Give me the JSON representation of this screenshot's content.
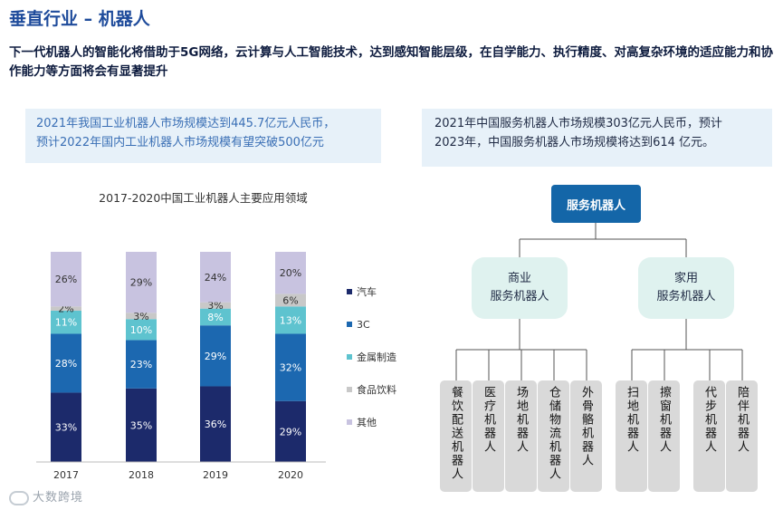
{
  "header": {
    "title": "垂直行业 – 机器人",
    "subtitle": "下一代机器人的智能化将借助于5G网络，云计算与人工智能技术，达到感知智能层级，在自学能力、执行精度、对高复杂环境的适应能力和协作能力等方面将会有显著提升"
  },
  "left_box": {
    "line1": "2021年我国工业机器人市场规模达到445.7亿元人民币，",
    "line2": "预计2022年国内工业机器人市场规模有望突破500亿元"
  },
  "right_box": {
    "line1": "2021年中国服务机器人市场规模303亿元人民币，预计",
    "line2": "2023年，中国服务机器人市场规模将达到614 亿元。"
  },
  "chart_data": {
    "type": "bar",
    "stacked": true,
    "title": "2017-2020中国工业机器人主要应用领域",
    "categories": [
      "2017",
      "2018",
      "2019",
      "2020"
    ],
    "series": [
      {
        "name": "汽车",
        "values": [
          33,
          35,
          36,
          29
        ],
        "color": "#1c2a6b"
      },
      {
        "name": "3C",
        "values": [
          28,
          23,
          29,
          32
        ],
        "color": "#1c68b0"
      },
      {
        "name": "金属制造",
        "values": [
          11,
          10,
          8,
          13
        ],
        "color": "#5ec3cf"
      },
      {
        "name": "食品饮料",
        "values": [
          2,
          3,
          3,
          6
        ],
        "color": "#c8c8c8"
      },
      {
        "name": "其他",
        "values": [
          26,
          29,
          24,
          20
        ],
        "color": "#c8c3e0"
      }
    ],
    "ylim": [
      0,
      100
    ],
    "legend_position": "right"
  },
  "tree": {
    "root": "服务机器人",
    "branches": [
      {
        "line1": "商业",
        "line2": "服务机器人",
        "leaves": [
          "餐饮配送机器人",
          "医疗机器人",
          "场地机器人",
          "仓储物流机器人",
          "外骨骼机器人"
        ]
      },
      {
        "line1": "家用",
        "line2": "服务机器人",
        "leaves": [
          "扫地机器人",
          "擦窗机器人",
          "代步机器人",
          "陪伴机器人"
        ]
      }
    ]
  },
  "watermark": "大数跨境"
}
